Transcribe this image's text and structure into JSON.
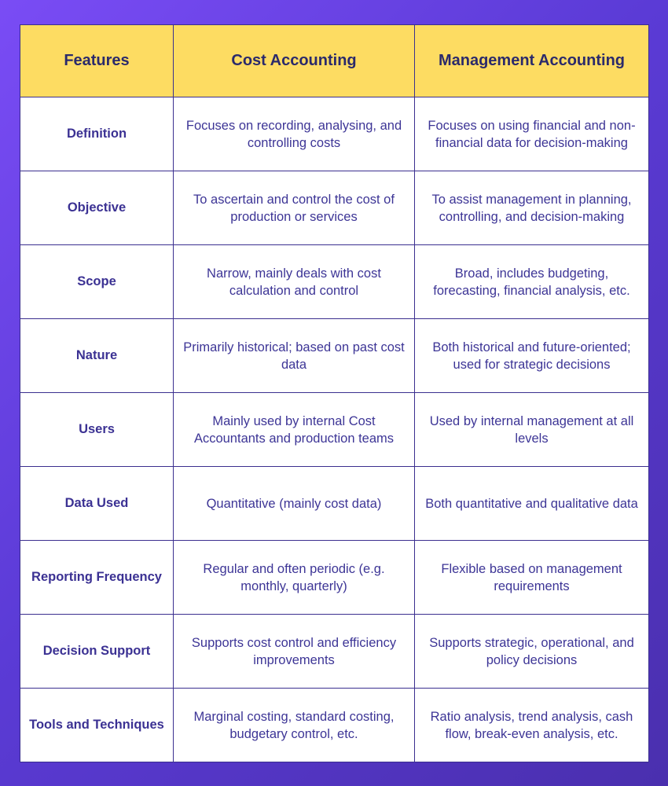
{
  "headers": [
    "Features",
    "Cost Accounting",
    "Management Accounting"
  ],
  "rows": [
    {
      "feature": "Definition",
      "cost": "Focuses on recording, analysing, and controlling costs",
      "management": "Focuses on using financial and non-financial data for decision-making"
    },
    {
      "feature": "Objective",
      "cost": "To ascertain and control the cost of production or services",
      "management": "To assist management in planning, controlling, and decision-making"
    },
    {
      "feature": "Scope",
      "cost": "Narrow, mainly deals with cost calculation and control",
      "management": "Broad, includes budgeting, forecasting, financial analysis, etc."
    },
    {
      "feature": "Nature",
      "cost": "Primarily historical; based on past cost data",
      "management": "Both historical and future-oriented; used for strategic decisions"
    },
    {
      "feature": "Users",
      "cost": "Mainly used by internal Cost Accountants and production teams",
      "management": "Used by internal management at all levels"
    },
    {
      "feature": "Data Used",
      "cost": "Quantitative (mainly cost data)",
      "management": "Both quantitative and qualitative data"
    },
    {
      "feature": "Reporting Frequency",
      "cost": "Regular and often periodic (e.g. monthly, quarterly)",
      "management": "Flexible based on management requirements"
    },
    {
      "feature": "Decision Support",
      "cost": "Supports cost control and efficiency improvements",
      "management": "Supports strategic, operational, and policy decisions"
    },
    {
      "feature": "Tools and Techniques",
      "cost": "Marginal costing, standard costing, budgetary control, etc.",
      "management": "Ratio analysis, trend analysis, cash flow, break-even analysis, etc."
    }
  ],
  "colors": {
    "background": "#5b3bd6",
    "header_fill": "#fddc62",
    "border": "#3b2f8f",
    "text": "#3b3193"
  }
}
